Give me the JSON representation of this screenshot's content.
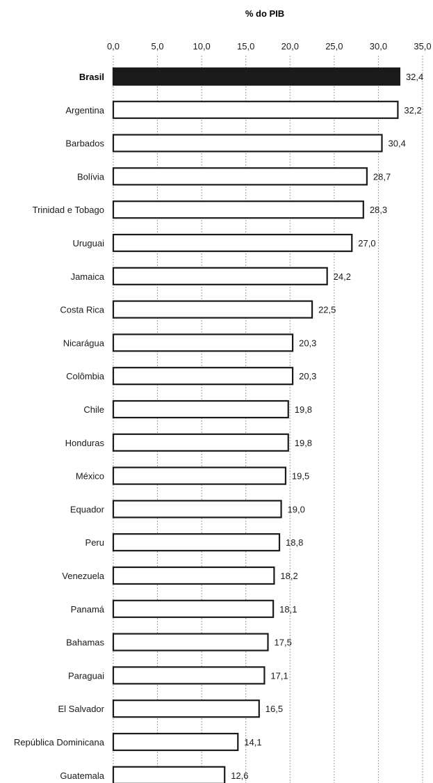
{
  "chart_data": {
    "type": "bar",
    "orientation": "horizontal",
    "title": "% do PIB",
    "xlim": [
      0,
      35
    ],
    "x_ticks": [
      "0,0",
      "5,0",
      "10,0",
      "15,0",
      "20,0",
      "25,0",
      "30,0",
      "35,0"
    ],
    "grid": true,
    "categories": [
      "Brasil",
      "Argentina",
      "Barbados",
      "Bolívia",
      "Trinidad e Tobago",
      "Uruguai",
      "Jamaica",
      "Costa Rica",
      "Nicarágua",
      "Colômbia",
      "Chile",
      "Honduras",
      "México",
      "Equador",
      "Peru",
      "Venezuela",
      "Panamá",
      "Bahamas",
      "Paraguai",
      "El Salvador",
      "República Dominicana",
      "Guatemala"
    ],
    "values": [
      32.4,
      32.2,
      30.4,
      28.7,
      28.3,
      27.0,
      24.2,
      22.5,
      20.3,
      20.3,
      19.8,
      19.8,
      19.5,
      19.0,
      18.8,
      18.2,
      18.1,
      17.5,
      17.1,
      16.5,
      14.1,
      12.6
    ],
    "value_labels": [
      "32,4",
      "32,2",
      "30,4",
      "28,7",
      "28,3",
      "27,0",
      "24,2",
      "22,5",
      "20,3",
      "20,3",
      "19,8",
      "19,8",
      "19,5",
      "19,0",
      "18,8",
      "18,2",
      "18,1",
      "17,5",
      "17,1",
      "16,5",
      "14,1",
      "12,6"
    ],
    "highlight_category": "Brasil",
    "colors": {
      "highlight_fill": "#1a1a1a",
      "bar_fill": "#ffffff",
      "bar_stroke": "#1a1a1a",
      "grid": "#9a9a9a",
      "text": "#1a1a1a"
    }
  }
}
